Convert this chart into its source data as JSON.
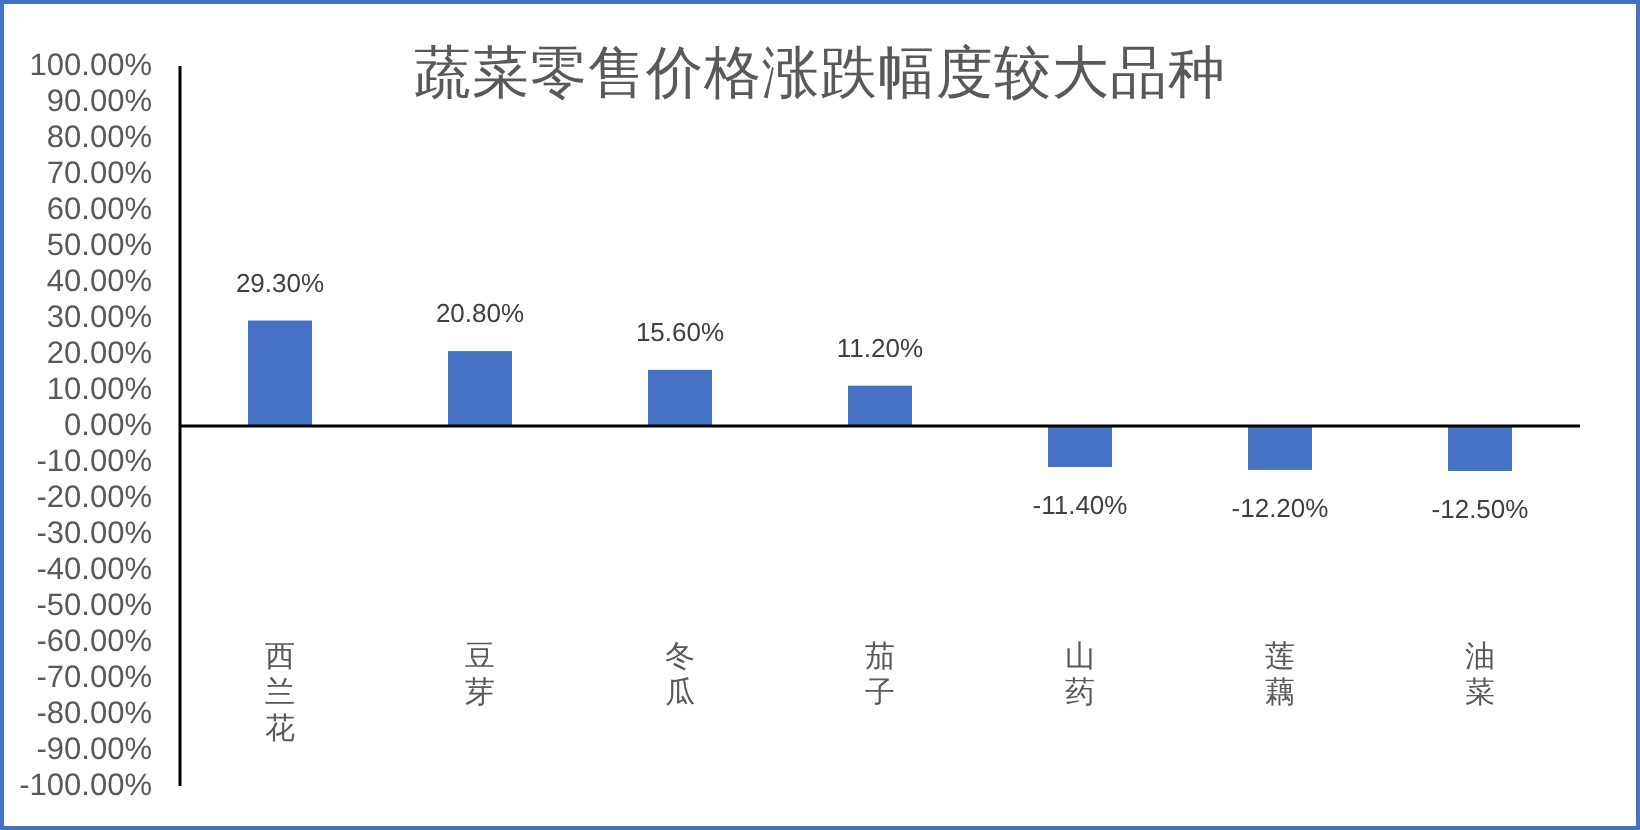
{
  "chart_data": {
    "type": "bar",
    "title": "蔬菜零售价格涨跌幅度较大品种",
    "categories": [
      "西兰花",
      "豆芽",
      "冬瓜",
      "茄子",
      "山药",
      "莲藕",
      "油菜"
    ],
    "values": [
      29.3,
      20.8,
      15.6,
      11.2,
      -11.4,
      -12.2,
      -12.5
    ],
    "value_labels": [
      "29.30%",
      "20.80%",
      "15.60%",
      "11.20%",
      "-11.40%",
      "-12.20%",
      "-12.50%"
    ],
    "color": "#4472c4",
    "ylim": [
      -100,
      100
    ],
    "yticks": [
      {
        "value": -100,
        "label": "-100.00%"
      },
      {
        "value": -90,
        "label": "-90.00%"
      },
      {
        "value": -80,
        "label": "-80.00%"
      },
      {
        "value": -70,
        "label": "-70.00%"
      },
      {
        "value": -60,
        "label": "-60.00%"
      },
      {
        "value": -50,
        "label": "-50.00%"
      },
      {
        "value": -40,
        "label": "-40.00%"
      },
      {
        "value": -30,
        "label": "-30.00%"
      },
      {
        "value": -20,
        "label": "-20.00%"
      },
      {
        "value": -10,
        "label": "-10.00%"
      },
      {
        "value": 0,
        "label": "0.00%"
      },
      {
        "value": 10,
        "label": "10.00%"
      },
      {
        "value": 20,
        "label": "20.00%"
      },
      {
        "value": 30,
        "label": "30.00%"
      },
      {
        "value": 40,
        "label": "40.00%"
      },
      {
        "value": 50,
        "label": "50.00%"
      },
      {
        "value": 60,
        "label": "60.00%"
      },
      {
        "value": 70,
        "label": "70.00%"
      },
      {
        "value": 80,
        "label": "80.00%"
      },
      {
        "value": 90,
        "label": "90.00%"
      },
      {
        "value": 100,
        "label": "100.00%"
      }
    ]
  }
}
